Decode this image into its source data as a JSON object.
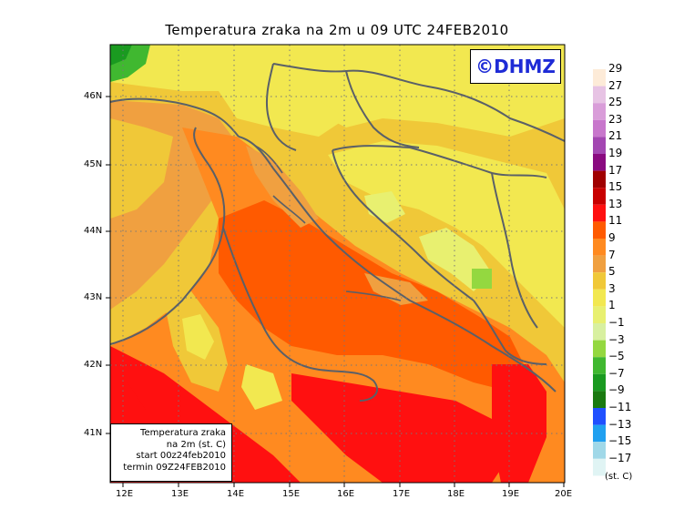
{
  "map": {
    "title": "Temperatura zraka na 2m u 09 UTC 24FEB2010",
    "logo_text": "©DHMZ",
    "info": {
      "line1": "Temperatura zraka",
      "line2": "na 2m (st. C)",
      "line3": "start 00z24feb2010",
      "line4": "termin 09Z24FEB2010"
    },
    "lon_labels": [
      "12E",
      "13E",
      "14E",
      "15E",
      "16E",
      "17E",
      "18E",
      "19E",
      "20E"
    ],
    "lat_labels": [
      "46N",
      "45N",
      "44N",
      "43N",
      "42N",
      "41N"
    ],
    "legend": {
      "unit": "(st. C)",
      "labels": [
        "29",
        "27",
        "25",
        "23",
        "21",
        "19",
        "17",
        "15",
        "13",
        "11",
        "9",
        "7",
        "5",
        "3",
        "1",
        "−1",
        "−3",
        "−5",
        "−7",
        "−9",
        "−11",
        "−13",
        "−15",
        "−17"
      ],
      "colors": [
        "#fdebd8",
        "#e7c3e4",
        "#d99dd9",
        "#c877cc",
        "#a347b2",
        "#8a0a80",
        "#a00000",
        "#c80000",
        "#ff1010",
        "#ff5a00",
        "#ff8a20",
        "#f0a040",
        "#f0c838",
        "#f2e850",
        "#e8f070",
        "#d8f0a0",
        "#94d840",
        "#40b830",
        "#1a9a20",
        "#1a7a10",
        "#2050ff",
        "#20a0f0",
        "#a0d8e8",
        "#e0f4f4"
      ]
    }
  }
}
